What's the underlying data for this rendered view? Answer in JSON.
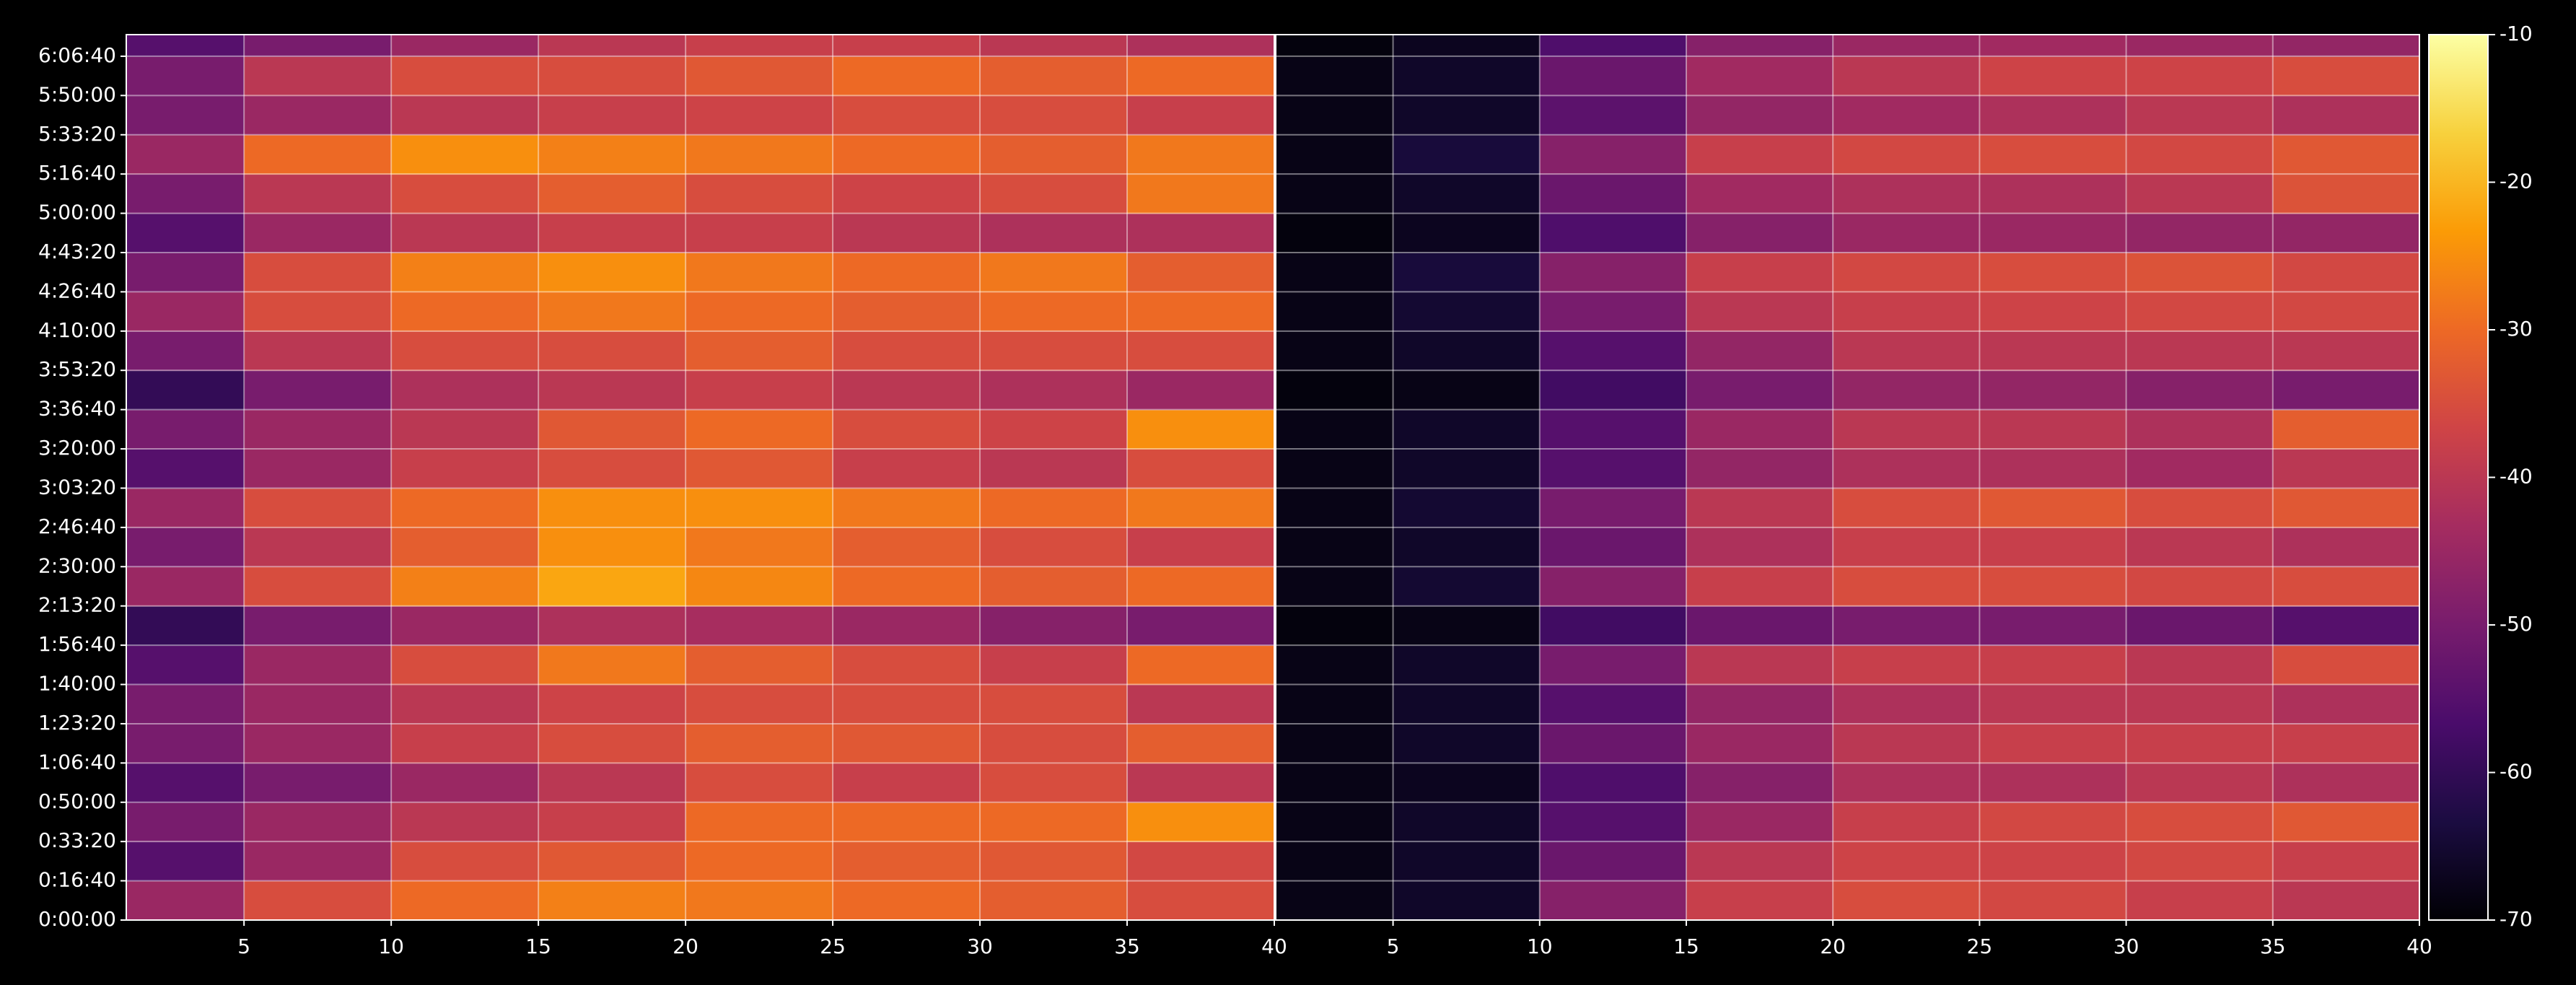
{
  "chart_data": [
    {
      "type": "heatmap",
      "colormap": "inferno",
      "grid": true,
      "xlim": [
        1,
        40
      ],
      "ylim": [
        0,
        22550
      ],
      "xticks": [
        5,
        10,
        15,
        20,
        25,
        30,
        35,
        40
      ],
      "yticks": [
        {
          "value": 0,
          "label": "0:00:00"
        },
        {
          "value": 1000,
          "label": "0:16:40"
        },
        {
          "value": 2000,
          "label": "0:33:20"
        },
        {
          "value": 3000,
          "label": "0:50:00"
        },
        {
          "value": 4000,
          "label": "1:06:40"
        },
        {
          "value": 5000,
          "label": "1:23:20"
        },
        {
          "value": 6000,
          "label": "1:40:00"
        },
        {
          "value": 7000,
          "label": "1:56:40"
        },
        {
          "value": 8000,
          "label": "2:13:20"
        },
        {
          "value": 9000,
          "label": "2:30:00"
        },
        {
          "value": 10000,
          "label": "2:46:40"
        },
        {
          "value": 11000,
          "label": "3:03:20"
        },
        {
          "value": 12000,
          "label": "3:20:00"
        },
        {
          "value": 13000,
          "label": "3:36:40"
        },
        {
          "value": 14000,
          "label": "3:53:20"
        },
        {
          "value": 15000,
          "label": "4:10:00"
        },
        {
          "value": 16000,
          "label": "4:26:40"
        },
        {
          "value": 17000,
          "label": "4:43:20"
        },
        {
          "value": 18000,
          "label": "5:00:00"
        },
        {
          "value": 19000,
          "label": "5:16:40"
        },
        {
          "value": 20000,
          "label": "5:33:20"
        },
        {
          "value": 21000,
          "label": "5:50:00"
        },
        {
          "value": 22000,
          "label": "6:06:40"
        }
      ],
      "xbins": [
        1,
        5,
        10,
        15,
        20,
        25,
        30,
        35,
        40
      ],
      "ybins": [
        0,
        1000,
        2000,
        3000,
        4000,
        5000,
        6000,
        7000,
        8000,
        9000,
        10000,
        11000,
        12000,
        13000,
        14000,
        15000,
        16000,
        17000,
        18000,
        19000,
        20000,
        21000,
        22000,
        22550
      ],
      "z": [
        [
          -45,
          -35,
          -30,
          -27,
          -28,
          -30,
          -32,
          -35
        ],
        [
          -55,
          -45,
          -35,
          -33,
          -30,
          -32,
          -33,
          -36
        ],
        [
          -50,
          -45,
          -40,
          -38,
          -30,
          -30,
          -30,
          -25
        ],
        [
          -55,
          -50,
          -45,
          -40,
          -35,
          -38,
          -35,
          -40
        ],
        [
          -50,
          -45,
          -38,
          -35,
          -32,
          -33,
          -35,
          -32
        ],
        [
          -50,
          -45,
          -40,
          -37,
          -35,
          -35,
          -35,
          -40
        ],
        [
          -55,
          -45,
          -35,
          -28,
          -32,
          -35,
          -38,
          -30
        ],
        [
          -60,
          -50,
          -45,
          -42,
          -43,
          -45,
          -48,
          -50
        ],
        [
          -45,
          -35,
          -27,
          -22,
          -26,
          -30,
          -32,
          -30
        ],
        [
          -50,
          -40,
          -32,
          -25,
          -28,
          -32,
          -35,
          -38
        ],
        [
          -45,
          -35,
          -30,
          -25,
          -25,
          -28,
          -30,
          -28
        ],
        [
          -55,
          -45,
          -38,
          -35,
          -33,
          -38,
          -40,
          -35
        ],
        [
          -50,
          -45,
          -40,
          -33,
          -30,
          -35,
          -37,
          -25
        ],
        [
          -60,
          -50,
          -42,
          -40,
          -38,
          -40,
          -42,
          -45
        ],
        [
          -50,
          -40,
          -35,
          -35,
          -32,
          -35,
          -35,
          -35
        ],
        [
          -45,
          -35,
          -30,
          -28,
          -30,
          -32,
          -30,
          -30
        ],
        [
          -50,
          -35,
          -27,
          -25,
          -28,
          -30,
          -28,
          -32
        ],
        [
          -55,
          -45,
          -40,
          -38,
          -38,
          -40,
          -42,
          -42
        ],
        [
          -50,
          -40,
          -35,
          -32,
          -35,
          -37,
          -35,
          -28
        ],
        [
          -45,
          -30,
          -25,
          -27,
          -28,
          -30,
          -32,
          -28
        ],
        [
          -50,
          -45,
          -40,
          -38,
          -37,
          -35,
          -35,
          -38
        ],
        [
          -50,
          -40,
          -35,
          -35,
          -33,
          -30,
          -32,
          -30
        ],
        [
          -55,
          -50,
          -45,
          -40,
          -38,
          -38,
          -40,
          -42
        ]
      ]
    },
    {
      "type": "heatmap",
      "colormap": "inferno",
      "grid": true,
      "xlim": [
        1,
        40
      ],
      "ylim": [
        0,
        22550
      ],
      "xticks": [
        5,
        10,
        15,
        20,
        25,
        30,
        35,
        40
      ],
      "xbins": [
        1,
        5,
        10,
        15,
        20,
        25,
        30,
        35,
        40
      ],
      "ybins": [
        0,
        1000,
        2000,
        3000,
        4000,
        5000,
        6000,
        7000,
        8000,
        9000,
        10000,
        11000,
        12000,
        13000,
        14000,
        15000,
        16000,
        17000,
        18000,
        19000,
        20000,
        21000,
        22000,
        22550
      ],
      "z": [
        [
          -68,
          -66,
          -48,
          -38,
          -35,
          -36,
          -38,
          -40
        ],
        [
          -68,
          -66,
          -52,
          -40,
          -37,
          -37,
          -36,
          -38
        ],
        [
          -68,
          -66,
          -55,
          -45,
          -38,
          -36,
          -35,
          -33
        ],
        [
          -68,
          -67,
          -56,
          -48,
          -42,
          -42,
          -40,
          -42
        ],
        [
          -68,
          -66,
          -52,
          -45,
          -40,
          -38,
          -38,
          -38
        ],
        [
          -68,
          -66,
          -55,
          -46,
          -42,
          -40,
          -40,
          -42
        ],
        [
          -68,
          -66,
          -50,
          -40,
          -38,
          -38,
          -40,
          -35
        ],
        [
          -69,
          -68,
          -58,
          -52,
          -50,
          -50,
          -52,
          -55
        ],
        [
          -68,
          -65,
          -48,
          -38,
          -35,
          -35,
          -36,
          -35
        ],
        [
          -68,
          -66,
          -52,
          -42,
          -38,
          -38,
          -40,
          -42
        ],
        [
          -68,
          -65,
          -50,
          -40,
          -35,
          -33,
          -35,
          -33
        ],
        [
          -68,
          -66,
          -55,
          -46,
          -42,
          -42,
          -44,
          -40
        ],
        [
          -68,
          -66,
          -55,
          -45,
          -40,
          -40,
          -42,
          -32
        ],
        [
          -69,
          -68,
          -58,
          -50,
          -46,
          -46,
          -48,
          -50
        ],
        [
          -68,
          -66,
          -55,
          -46,
          -40,
          -40,
          -40,
          -40
        ],
        [
          -68,
          -65,
          -50,
          -40,
          -38,
          -37,
          -36,
          -36
        ],
        [
          -68,
          -64,
          -48,
          -38,
          -36,
          -35,
          -34,
          -36
        ],
        [
          -69,
          -67,
          -56,
          -48,
          -45,
          -45,
          -46,
          -46
        ],
        [
          -68,
          -66,
          -52,
          -44,
          -42,
          -42,
          -40,
          -34
        ],
        [
          -68,
          -64,
          -48,
          -38,
          -36,
          -35,
          -36,
          -33
        ],
        [
          -68,
          -66,
          -54,
          -46,
          -44,
          -42,
          -40,
          -42
        ],
        [
          -68,
          -66,
          -52,
          -44,
          -40,
          -37,
          -37,
          -35
        ],
        [
          -69,
          -67,
          -56,
          -48,
          -45,
          -44,
          -45,
          -46
        ]
      ]
    },
    {
      "type": "colorbar",
      "colormap": "inferno",
      "ylim": [
        -70,
        -10
      ],
      "yticks": [
        -70,
        -60,
        -50,
        -40,
        -30,
        -20,
        -10
      ]
    }
  ]
}
